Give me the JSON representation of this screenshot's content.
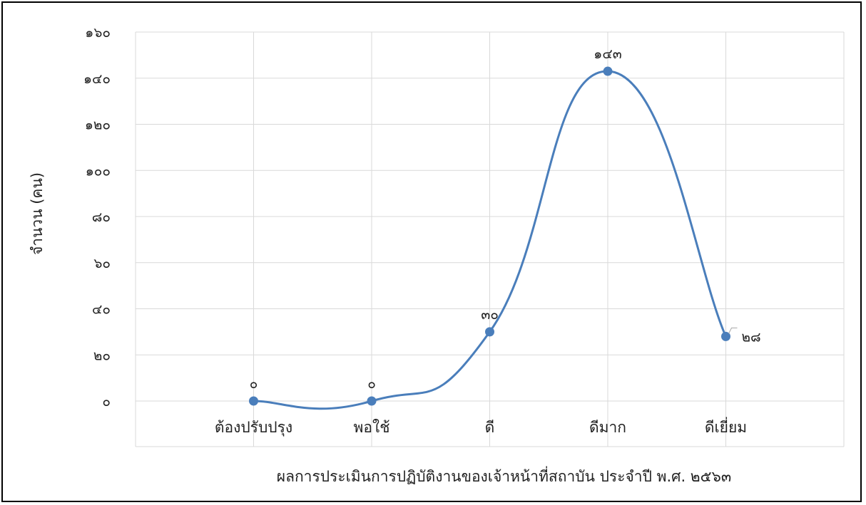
{
  "chart_data": {
    "type": "line",
    "smooth": true,
    "categories": [
      "ต้องปรับปรุง",
      "พอใช้",
      "ดี",
      "ดีมาก",
      "ดีเยี่ยม"
    ],
    "values": [
      0,
      0,
      30,
      143,
      28
    ],
    "data_labels": [
      "๐",
      "๐",
      "๓๐",
      "๑๔๓",
      "๒๘"
    ],
    "title": "",
    "xlabel": "ผลการประเมินการปฏิบัติงานของเจ้าหน้าที่สถาบัน ประจำปี พ.ศ. ๒๕๖๓",
    "ylabel": "จำนวน (คน)",
    "ylim": [
      0,
      160
    ],
    "yticks": [
      0,
      20,
      40,
      60,
      80,
      100,
      120,
      140,
      160
    ],
    "ytick_labels": [
      "๐",
      "๒๐",
      "๔๐",
      "๖๐",
      "๘๐",
      "๑๐๐",
      "๑๒๐",
      "๑๔๐",
      "๑๖๐"
    ],
    "grid": true,
    "legend": "none",
    "colors": {
      "line": "#4A7EBB",
      "marker": "#4A7EBB",
      "grid": "#D9D9D9"
    }
  }
}
